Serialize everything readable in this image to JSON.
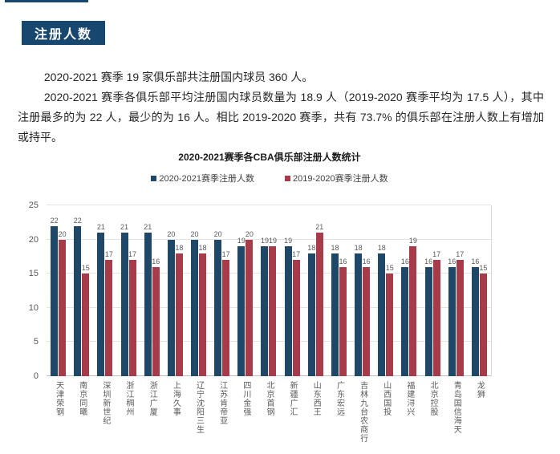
{
  "page": {
    "section_badge": "注册人数",
    "paragraph1": "2020-2021 赛季 19 家俱乐部共注册国内球员 360 人。",
    "paragraph2": "2020-2021 赛季各俱乐部平均注册国内球员数量为 18.9 人（2019-2020 赛季平均为 17.5 人），其中注册最多的为 22 人，最少的为 16 人。相比 2019-2020 赛季，共有 73.7% 的俱乐部在注册人数上有增加或持平。"
  },
  "colors": {
    "accent_navy": "#17466F",
    "bar_blue": "#1F4767",
    "bar_red": "#A73B4A",
    "label_gray": "#595959",
    "gridline": "#E3E3E3"
  },
  "chart_data": {
    "type": "bar",
    "title": "2020-2021赛季各CBA俱乐部注册人数统计",
    "categories": [
      "天津荣钢",
      "南京同曦",
      "深圳新世纪",
      "浙江稠州",
      "浙江广厦",
      "上海久事",
      "辽宁沈阳三生",
      "江苏肯帝亚",
      "四川金强",
      "北京首钢",
      "新疆广汇",
      "山东西王",
      "广东宏远",
      "吉林九台农商行",
      "山西国投",
      "福建浔兴",
      "北京控股",
      "青岛国信海天",
      "龙狮"
    ],
    "series": [
      {
        "name": "2020-2021赛季注册人数",
        "color": "#1F4767",
        "values": [
          22,
          22,
          21,
          21,
          21,
          20,
          20,
          20,
          19,
          19,
          19,
          18,
          18,
          18,
          18,
          16,
          16,
          16,
          16
        ]
      },
      {
        "name": "2019-2020赛季注册人数",
        "color": "#A73B4A",
        "values": [
          20,
          15,
          17,
          17,
          16,
          18,
          18,
          17,
          20,
          19,
          17,
          21,
          16,
          16,
          15,
          19,
          17,
          17,
          15
        ]
      }
    ],
    "xlabel": "",
    "ylabel": "",
    "ylim": [
      0,
      25
    ],
    "yticks": [
      0,
      5,
      10,
      15,
      20,
      25
    ],
    "grid": "horizontal",
    "legend_position": "top",
    "data_labels": true
  }
}
